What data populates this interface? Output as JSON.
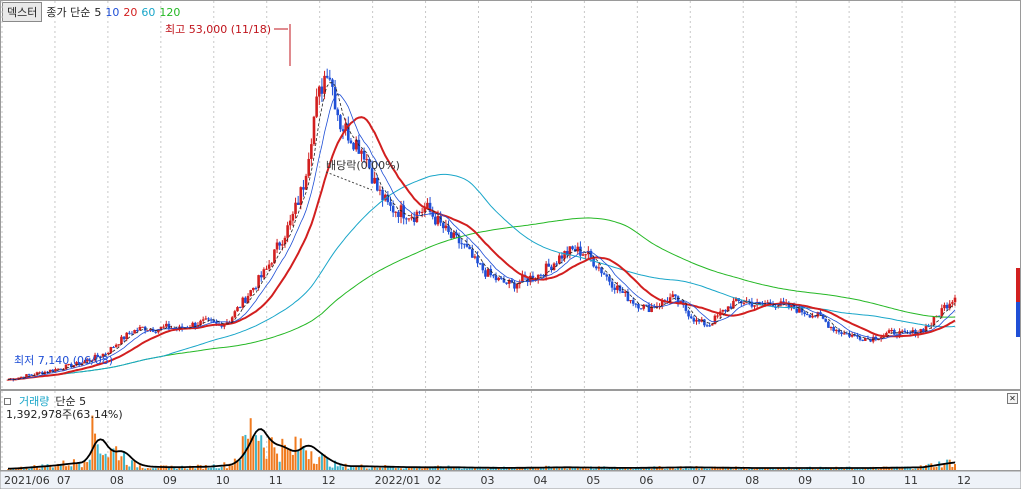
{
  "header": {
    "tab_label": "덱스터",
    "price_legend": {
      "prefix": "종가 단순",
      "periods": [
        "5",
        "10",
        "20",
        "60",
        "120"
      ],
      "colors": [
        "#222222",
        "#1f4fd6",
        "#d21f1f",
        "#19a6c9",
        "#25b825"
      ]
    }
  },
  "annotations": {
    "high": "최고 53,000 (11/18)",
    "low": "최저 7,140 (06/08)",
    "rate": "배당락(0.00%)"
  },
  "volume_panel": {
    "title": "거래량",
    "ma": "단순 5",
    "value": "1,392,978주(63.14%)",
    "close_icon": "close-icon"
  },
  "chart_data": {
    "type": "candlestick",
    "price_axis_range": [
      6000,
      56000
    ],
    "x_axis_labels": [
      "2021/06",
      "07",
      "08",
      "09",
      "10",
      "11",
      "12",
      "2022/01",
      "02",
      "03",
      "04",
      "05",
      "06",
      "07",
      "08",
      "09",
      "10",
      "11",
      "12"
    ],
    "up_color": "#d21f1f",
    "down_color": "#1f4fd6",
    "close_path": [
      [
        0,
        7140
      ],
      [
        3,
        8200
      ],
      [
        6,
        9400
      ],
      [
        8,
        10800
      ],
      [
        9,
        12300
      ],
      [
        10,
        13600
      ],
      [
        11,
        14200
      ],
      [
        12,
        14000
      ],
      [
        13,
        14300
      ],
      [
        14,
        14000
      ],
      [
        15,
        14600
      ],
      [
        16,
        15000
      ],
      [
        17,
        14600
      ],
      [
        18,
        15200
      ],
      [
        19,
        17500
      ],
      [
        20,
        19800
      ],
      [
        21,
        22000
      ],
      [
        22,
        25500
      ],
      [
        23,
        28500
      ],
      [
        24,
        33500
      ],
      [
        25,
        44000
      ],
      [
        26,
        50000
      ],
      [
        27,
        42000
      ],
      [
        28,
        40000
      ],
      [
        29,
        38000
      ],
      [
        30,
        33000
      ],
      [
        31,
        30500
      ],
      [
        32,
        30000
      ],
      [
        33,
        29500
      ],
      [
        34,
        30500
      ],
      [
        35,
        28500
      ],
      [
        36,
        26500
      ],
      [
        37,
        25500
      ],
      [
        38,
        23000
      ],
      [
        39,
        21500
      ],
      [
        40,
        20500
      ],
      [
        41,
        20000
      ],
      [
        42,
        20800
      ],
      [
        43,
        21200
      ],
      [
        44,
        22500
      ],
      [
        45,
        24000
      ],
      [
        46,
        24800
      ],
      [
        47,
        24300
      ],
      [
        48,
        22500
      ],
      [
        49,
        20500
      ],
      [
        50,
        18800
      ],
      [
        51,
        17600
      ],
      [
        52,
        16800
      ],
      [
        53,
        17500
      ],
      [
        54,
        18300
      ],
      [
        55,
        16800
      ],
      [
        56,
        15000
      ],
      [
        57,
        14600
      ],
      [
        58,
        16200
      ],
      [
        59,
        17600
      ],
      [
        60,
        17800
      ],
      [
        61,
        17200
      ],
      [
        62,
        17600
      ],
      [
        63,
        17200
      ],
      [
        64,
        16800
      ],
      [
        65,
        16200
      ],
      [
        66,
        15700
      ],
      [
        67,
        14200
      ],
      [
        68,
        13400
      ],
      [
        69,
        13000
      ],
      [
        70,
        12700
      ],
      [
        71,
        13100
      ],
      [
        72,
        13600
      ],
      [
        73,
        13200
      ],
      [
        74,
        13700
      ],
      [
        75,
        14600
      ],
      [
        76,
        16800
      ],
      [
        77,
        18500
      ]
    ],
    "volume_path": [
      [
        0,
        0.02
      ],
      [
        3,
        0.06
      ],
      [
        6,
        0.12
      ],
      [
        7,
        0.55
      ],
      [
        8,
        0.25
      ],
      [
        9,
        0.3
      ],
      [
        10,
        0.1
      ],
      [
        11,
        0.05
      ],
      [
        13,
        0.04
      ],
      [
        16,
        0.05
      ],
      [
        18,
        0.08
      ],
      [
        19,
        0.28
      ],
      [
        20,
        0.7
      ],
      [
        21,
        0.4
      ],
      [
        22,
        0.35
      ],
      [
        23,
        0.25
      ],
      [
        24,
        0.4
      ],
      [
        25,
        0.25
      ],
      [
        26,
        0.12
      ],
      [
        27,
        0.06
      ],
      [
        30,
        0.05
      ],
      [
        33,
        0.04
      ],
      [
        36,
        0.04
      ],
      [
        40,
        0.03
      ],
      [
        45,
        0.04
      ],
      [
        50,
        0.03
      ],
      [
        55,
        0.04
      ],
      [
        60,
        0.03
      ],
      [
        65,
        0.03
      ],
      [
        70,
        0.03
      ],
      [
        74,
        0.04
      ],
      [
        76,
        0.1
      ],
      [
        77,
        0.12
      ]
    ]
  }
}
